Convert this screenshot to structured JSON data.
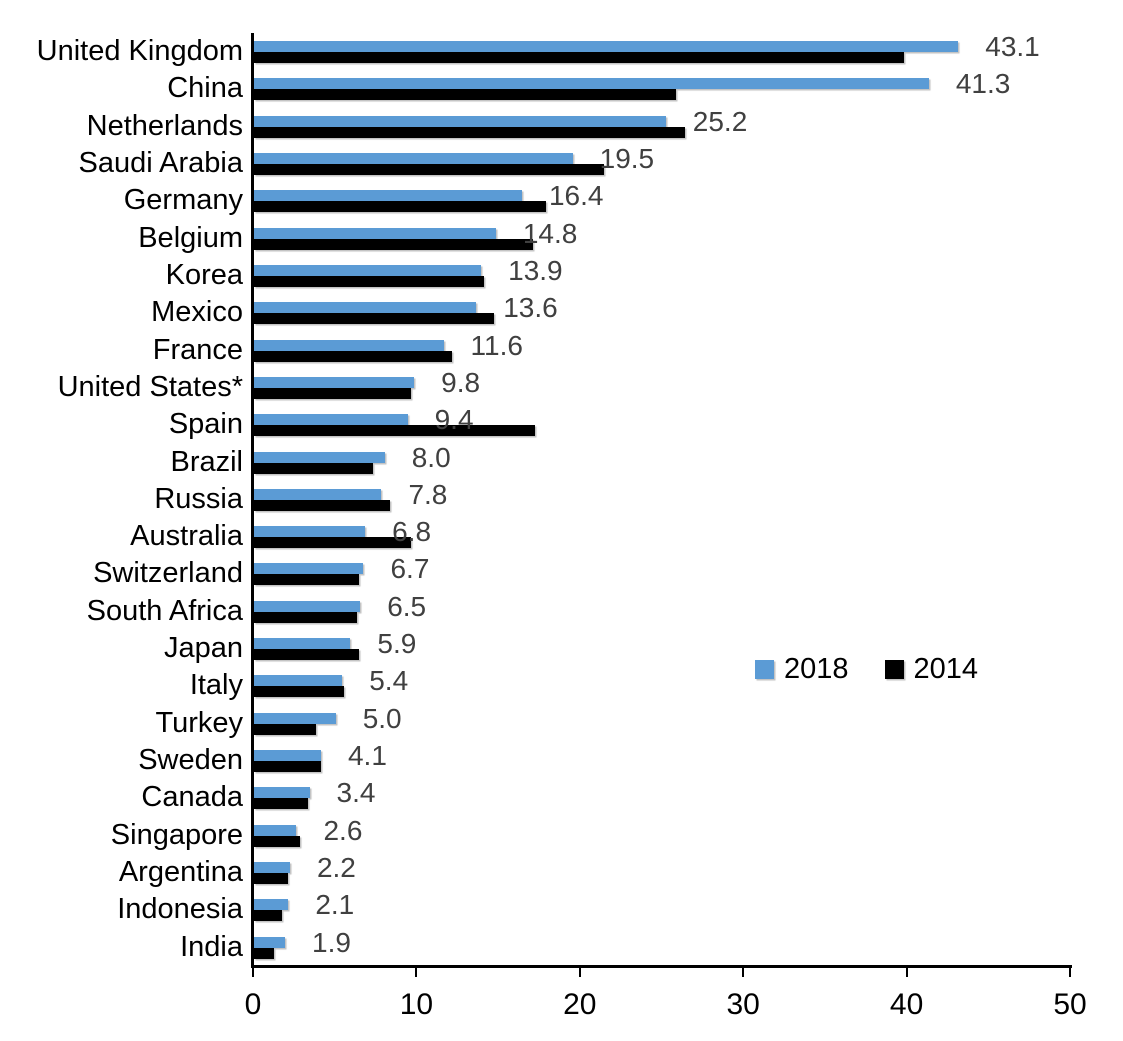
{
  "chart_data": {
    "type": "bar",
    "orientation": "horizontal",
    "title": "",
    "xlabel": "",
    "ylabel": "",
    "categories": [
      "United Kingdom",
      "China",
      "Netherlands",
      "Saudi Arabia",
      "Germany",
      "Belgium",
      "Korea",
      "Mexico",
      "France",
      "United States*",
      "Spain",
      "Brazil",
      "Russia",
      "Australia",
      "Switzerland",
      "South Africa",
      "Japan",
      "Italy",
      "Turkey",
      "Sweden",
      "Canada",
      "Singapore",
      "Argentina",
      "Indonesia",
      "India"
    ],
    "series": [
      {
        "name": "2018",
        "color": "#5B9BD5",
        "values": [
          43.1,
          41.3,
          25.2,
          19.5,
          16.4,
          14.8,
          13.9,
          13.6,
          11.6,
          9.8,
          9.4,
          8.0,
          7.8,
          6.8,
          6.7,
          6.5,
          5.9,
          5.4,
          5.0,
          4.1,
          3.4,
          2.6,
          2.2,
          2.1,
          1.9
        ]
      },
      {
        "name": "2014",
        "color": "#000000",
        "values": [
          39.8,
          25.8,
          26.4,
          21.4,
          17.9,
          17.1,
          14.1,
          14.7,
          12.1,
          9.6,
          17.2,
          7.3,
          8.3,
          9.6,
          6.4,
          6.3,
          6.4,
          5.5,
          3.8,
          4.1,
          3.3,
          2.8,
          2.1,
          1.7,
          1.2
        ]
      }
    ],
    "value_labels_series": "2018",
    "value_labels": [
      "43.1",
      "41.3",
      "25.2",
      "19.5",
      "16.4",
      "14.8",
      "13.9",
      "13.6",
      "11.6",
      "9.8",
      "9.4",
      "8.0",
      "7.8",
      "6.8",
      "6.7",
      "6.5",
      "5.9",
      "5.4",
      "5.0",
      "4.1",
      "3.4",
      "2.6",
      "2.2",
      "2.1",
      "1.9"
    ],
    "xlim": [
      0,
      50
    ],
    "x_ticks": [
      "0",
      "10",
      "20",
      "30",
      "40",
      "50"
    ],
    "grid": false,
    "legend_position": "middle-right"
  },
  "legend": {
    "items": [
      {
        "label": "2018",
        "color": "#5B9BD5"
      },
      {
        "label": "2014",
        "color": "#000000"
      }
    ]
  },
  "colors": {
    "bar_2018": "#5B9BD5",
    "bar_2014": "#000000",
    "value_label_text": "#404040",
    "axis": "#000000",
    "background": "#ffffff"
  }
}
